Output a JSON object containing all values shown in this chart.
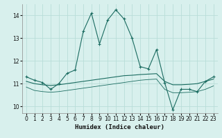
{
  "xlabel": "Humidex (Indice chaleur)",
  "xlim": [
    -0.5,
    23.5
  ],
  "ylim": [
    9.7,
    14.5
  ],
  "xticks": [
    0,
    1,
    2,
    3,
    4,
    5,
    6,
    7,
    8,
    9,
    10,
    11,
    12,
    13,
    14,
    15,
    16,
    17,
    18,
    19,
    20,
    21,
    22,
    23
  ],
  "yticks": [
    10,
    11,
    12,
    13,
    14
  ],
  "bg_color": "#d8f0ed",
  "grid_color": "#b8ddd8",
  "line_color": "#1a6b60",
  "line1_x": [
    0,
    1,
    2,
    3,
    4,
    5,
    6,
    7,
    8,
    9,
    10,
    11,
    12,
    13,
    14,
    15,
    16,
    17,
    18,
    19,
    20,
    21,
    22,
    23
  ],
  "line1_y": [
    11.3,
    11.15,
    11.05,
    10.75,
    11.0,
    11.45,
    11.6,
    13.3,
    14.1,
    12.75,
    13.8,
    14.25,
    13.85,
    13.0,
    11.75,
    11.65,
    12.5,
    11.05,
    9.85,
    10.75,
    10.75,
    10.65,
    11.1,
    11.3
  ],
  "line2_x": [
    0,
    1,
    2,
    3,
    4,
    5,
    6,
    7,
    8,
    9,
    10,
    11,
    12,
    13,
    14,
    15,
    16,
    17,
    18,
    19,
    20,
    21,
    22,
    23
  ],
  "line2_y": [
    11.1,
    11.0,
    10.95,
    10.92,
    10.95,
    11.0,
    11.05,
    11.1,
    11.15,
    11.2,
    11.25,
    11.3,
    11.35,
    11.37,
    11.4,
    11.42,
    11.44,
    11.1,
    10.95,
    10.95,
    10.97,
    11.0,
    11.1,
    11.2
  ],
  "line3_x": [
    0,
    1,
    2,
    3,
    4,
    5,
    6,
    7,
    8,
    9,
    10,
    11,
    12,
    13,
    14,
    15,
    16,
    17,
    18,
    19,
    20,
    21,
    22,
    23
  ],
  "line3_y": [
    10.85,
    10.7,
    10.65,
    10.62,
    10.65,
    10.7,
    10.75,
    10.8,
    10.85,
    10.9,
    10.95,
    11.0,
    11.05,
    11.1,
    11.15,
    11.18,
    11.2,
    10.75,
    10.6,
    10.6,
    10.62,
    10.65,
    10.75,
    10.9
  ]
}
